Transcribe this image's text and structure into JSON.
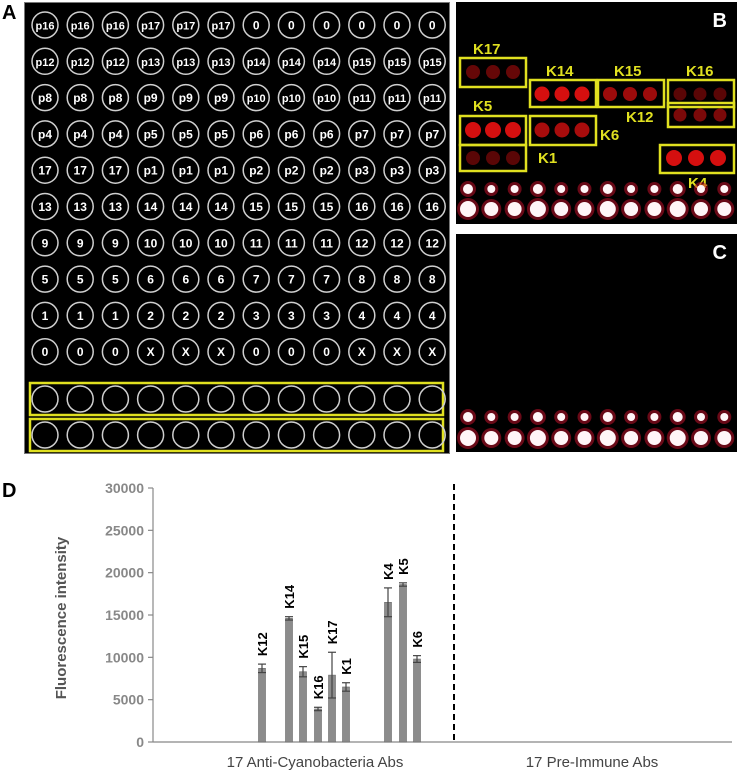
{
  "panels": {
    "a": "A",
    "b": "B",
    "c": "C",
    "d": "D"
  },
  "grid_rows": [
    [
      "p16",
      "p16",
      "p16",
      "p17",
      "p17",
      "p17",
      "0",
      "0",
      "0",
      "0",
      "0",
      "0"
    ],
    [
      "p12",
      "p12",
      "p12",
      "p13",
      "p13",
      "p13",
      "p14",
      "p14",
      "p14",
      "p15",
      "p15",
      "p15"
    ],
    [
      "p8",
      "p8",
      "p8",
      "p9",
      "p9",
      "p9",
      "p10",
      "p10",
      "p10",
      "p11",
      "p11",
      "p11"
    ],
    [
      "p4",
      "p4",
      "p4",
      "p5",
      "p5",
      "p5",
      "p6",
      "p6",
      "p6",
      "p7",
      "p7",
      "p7"
    ],
    [
      "17",
      "17",
      "17",
      "p1",
      "p1",
      "p1",
      "p2",
      "p2",
      "p2",
      "p3",
      "p3",
      "p3"
    ],
    [
      "13",
      "13",
      "13",
      "14",
      "14",
      "14",
      "15",
      "15",
      "15",
      "16",
      "16",
      "16"
    ],
    [
      "9",
      "9",
      "9",
      "10",
      "10",
      "10",
      "11",
      "11",
      "11",
      "12",
      "12",
      "12"
    ],
    [
      "5",
      "5",
      "5",
      "6",
      "6",
      "6",
      "7",
      "7",
      "7",
      "8",
      "8",
      "8"
    ],
    [
      "1",
      "1",
      "1",
      "2",
      "2",
      "2",
      "3",
      "3",
      "3",
      "4",
      "4",
      "4"
    ],
    [
      "0",
      "0",
      "0",
      "X",
      "X",
      "X",
      "0",
      "0",
      "0",
      "X",
      "X",
      "X"
    ]
  ],
  "panel_b_labels": [
    "K17",
    "K14",
    "K15",
    "K16",
    "K5",
    "K12",
    "K6",
    "K1",
    "K4"
  ],
  "colors": {
    "highlight": "#e0e020",
    "spot_red": "#e01010",
    "bar": "#8c8c8c",
    "axis_text": "#888888"
  },
  "chart_data": {
    "type": "bar",
    "ylabel": "Fluorescence intensity",
    "ylim": [
      0,
      30000
    ],
    "yticks": [
      "0",
      "5000",
      "10000",
      "15000",
      "20000",
      "25000",
      "30000"
    ],
    "group_labels": [
      "17 Anti-Cyanobacteria Abs",
      "17 Pre-Immune Abs"
    ],
    "categories": [
      "K12",
      "K14",
      "K15",
      "K16",
      "K17",
      "K1",
      "K4",
      "K5",
      "K6"
    ],
    "values": [
      8700,
      14600,
      8300,
      3900,
      7900,
      6500,
      16500,
      18600,
      9800
    ],
    "errors": [
      500,
      200,
      600,
      200,
      2700,
      500,
      1700,
      200,
      400
    ]
  }
}
